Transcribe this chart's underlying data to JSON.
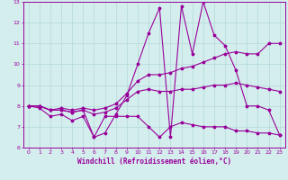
{
  "xlabel": "Windchill (Refroidissement éolien,°C)",
  "xlim": [
    -0.5,
    23.5
  ],
  "ylim": [
    6,
    13
  ],
  "xticks": [
    0,
    1,
    2,
    3,
    4,
    5,
    6,
    7,
    8,
    9,
    10,
    11,
    12,
    13,
    14,
    15,
    16,
    17,
    18,
    19,
    20,
    21,
    22,
    23
  ],
  "yticks": [
    6,
    7,
    8,
    9,
    10,
    11,
    12,
    13
  ],
  "bg_color": "#d4eeee",
  "line_color": "#990099",
  "grid_color": "#b8dcdc",
  "series": [
    {
      "x": [
        0,
        1,
        2,
        3,
        4,
        5,
        6,
        7,
        8,
        9,
        10,
        11,
        12,
        13,
        14,
        15,
        16,
        17,
        18,
        19,
        20,
        21,
        22,
        23
      ],
      "y": [
        8.0,
        7.9,
        7.5,
        7.6,
        7.3,
        7.5,
        6.5,
        7.5,
        7.5,
        7.5,
        7.5,
        7.0,
        6.5,
        7.0,
        7.2,
        7.1,
        7.0,
        7.0,
        7.0,
        6.8,
        6.8,
        6.7,
        6.7,
        6.6
      ]
    },
    {
      "x": [
        0,
        1,
        2,
        3,
        4,
        5,
        6,
        7,
        8,
        9,
        10,
        11,
        12,
        13,
        14,
        15,
        16,
        17,
        18,
        19,
        20,
        21,
        22,
        23
      ],
      "y": [
        8.0,
        8.0,
        7.8,
        7.8,
        7.7,
        7.8,
        7.6,
        7.7,
        7.9,
        8.3,
        8.7,
        8.8,
        8.7,
        8.7,
        8.8,
        8.8,
        8.9,
        9.0,
        9.0,
        9.1,
        9.0,
        8.9,
        8.8,
        8.7
      ]
    },
    {
      "x": [
        0,
        1,
        2,
        3,
        4,
        5,
        6,
        7,
        8,
        9,
        10,
        11,
        12,
        13,
        14,
        15,
        16,
        17,
        18,
        19,
        20,
        21,
        22,
        23
      ],
      "y": [
        8.0,
        8.0,
        7.8,
        7.9,
        7.8,
        7.9,
        7.8,
        7.9,
        8.1,
        8.6,
        9.2,
        9.5,
        9.5,
        9.6,
        9.8,
        9.9,
        10.1,
        10.3,
        10.5,
        10.6,
        10.5,
        10.5,
        11.0,
        11.0
      ]
    },
    {
      "x": [
        0,
        1,
        2,
        3,
        4,
        5,
        6,
        7,
        8,
        9,
        10,
        11,
        12,
        13,
        14,
        15,
        16,
        17,
        18,
        19,
        20,
        21,
        22,
        23
      ],
      "y": [
        8.0,
        8.0,
        7.8,
        7.8,
        7.7,
        7.8,
        6.5,
        6.7,
        7.6,
        8.5,
        10.0,
        11.5,
        12.7,
        6.5,
        12.8,
        10.5,
        13.0,
        11.4,
        10.9,
        9.7,
        8.0,
        8.0,
        7.8,
        6.6
      ]
    }
  ]
}
